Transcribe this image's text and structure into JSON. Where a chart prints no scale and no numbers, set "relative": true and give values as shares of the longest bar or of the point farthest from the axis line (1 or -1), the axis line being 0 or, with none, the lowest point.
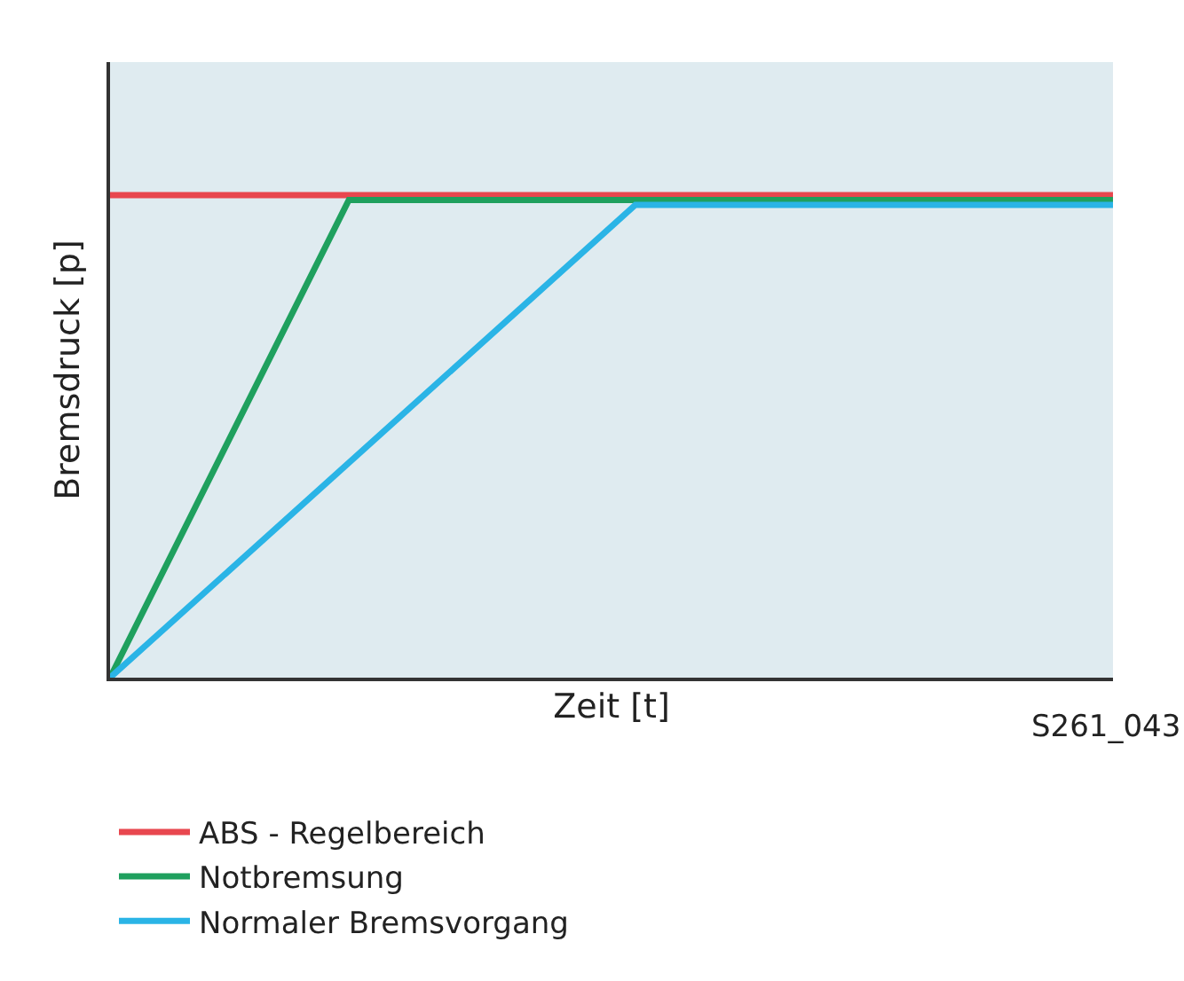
{
  "chart_data": {
    "type": "line",
    "relative": true,
    "xlabel": "Zeit [t]",
    "ylabel": "Bremsdruck [p]",
    "categories": [
      null,
      null,
      null,
      null,
      null,
      null,
      null,
      null,
      null,
      null,
      null,
      null,
      null,
      null,
      null,
      null,
      null,
      null,
      null,
      null,
      null,
      null
    ],
    "series": [
      {
        "name": "ABS - Regelbereich",
        "color": "#e8474f",
        "values": [
          1,
          null,
          null,
          null,
          null,
          null,
          null,
          null,
          null,
          null,
          null,
          null,
          null,
          null,
          null,
          null,
          null,
          null,
          null,
          null,
          null,
          1
        ]
      },
      {
        "name": "Notbremsung",
        "color": "#1fa05e",
        "values": [
          0,
          null,
          null,
          null,
          null,
          0.99,
          null,
          null,
          null,
          null,
          null,
          null,
          null,
          null,
          null,
          null,
          null,
          null,
          null,
          null,
          null,
          0.99
        ]
      },
      {
        "name": "Normaler Bremsvorgang",
        "color": "#2ab4e6",
        "values": [
          0,
          null,
          null,
          null,
          null,
          null,
          null,
          null,
          null,
          null,
          null,
          0.98,
          null,
          null,
          null,
          null,
          null,
          null,
          null,
          null,
          null,
          0.98
        ]
      }
    ],
    "legend": "bottom left",
    "grid": false,
    "marker": "none",
    "line_style": "solid",
    "annotations": [
      "S261_043"
    ]
  }
}
